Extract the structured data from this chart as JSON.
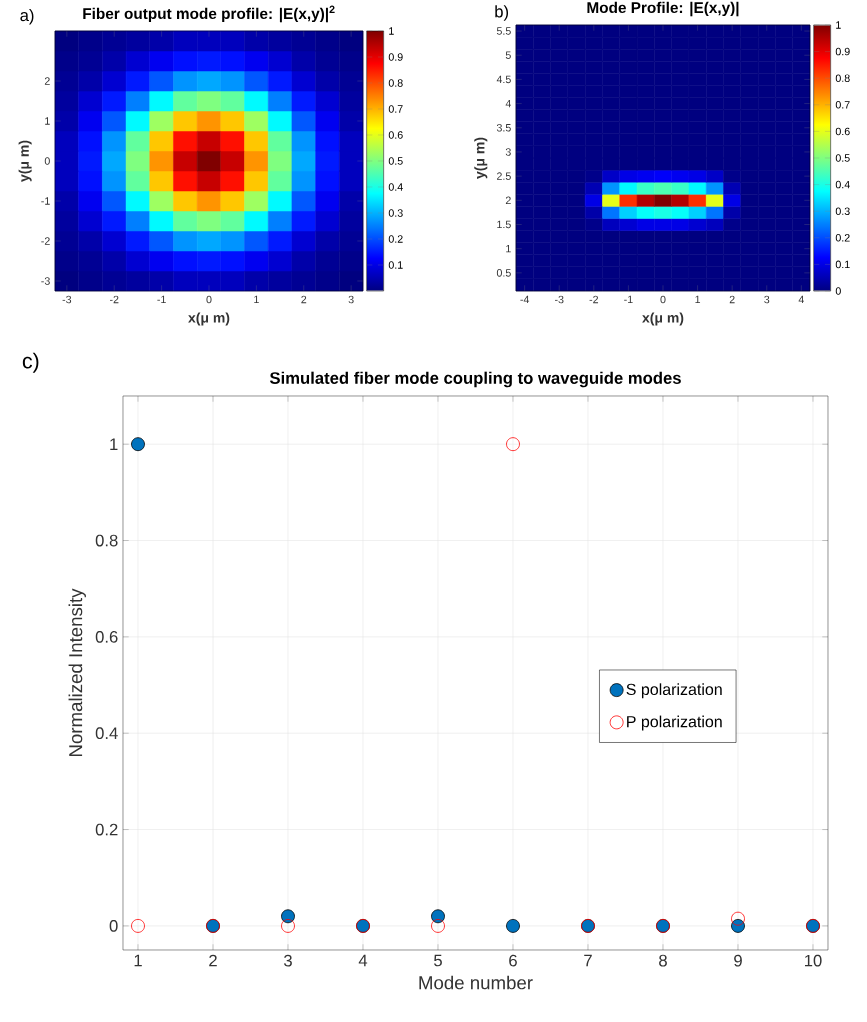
{
  "chart_data": [
    {
      "type": "heatmap",
      "title": "Fiber output mode profile: |E(x,y)|$^{2}$",
      "xlabel": "x(μ m)",
      "ylabel": "y(μ m)",
      "annotations": [
        "a)"
      ],
      "categories": [
        "-3",
        null,
        "-2",
        null,
        "-1",
        null,
        "0",
        null,
        "1",
        null,
        "2",
        null,
        "3"
      ],
      "y_categories": [
        null,
        null,
        "2",
        null,
        "1",
        null,
        "0",
        null,
        "-1",
        null,
        "-2",
        null,
        "-3"
      ],
      "cells": [
        [
          0,
          0.01,
          0.02,
          0.03,
          0.04,
          0.06,
          0.06,
          0.06,
          0.04,
          0.03,
          0.02,
          0.01,
          0
        ],
        [
          0.01,
          0.02,
          0.04,
          0.08,
          0.11,
          0.14,
          0.15,
          0.14,
          0.11,
          0.08,
          0.04,
          0.02,
          0.01
        ],
        [
          0.02,
          0.04,
          0.08,
          0.15,
          0.21,
          0.27,
          0.29,
          0.27,
          0.21,
          0.15,
          0.08,
          0.04,
          0.02
        ],
        [
          0.03,
          0.08,
          0.15,
          0.25,
          0.37,
          0.47,
          0.5,
          0.47,
          0.37,
          0.25,
          0.15,
          0.08,
          0.03
        ],
        [
          0.04,
          0.11,
          0.21,
          0.37,
          0.53,
          0.68,
          0.73,
          0.68,
          0.53,
          0.37,
          0.21,
          0.11,
          0.04
        ],
        [
          0.06,
          0.14,
          0.27,
          0.47,
          0.68,
          0.86,
          0.93,
          0.86,
          0.68,
          0.47,
          0.27,
          0.14,
          0.06
        ],
        [
          0.06,
          0.15,
          0.29,
          0.5,
          0.73,
          0.93,
          1,
          0.93,
          0.73,
          0.5,
          0.29,
          0.15,
          0.06
        ],
        [
          0.06,
          0.14,
          0.27,
          0.47,
          0.68,
          0.86,
          0.93,
          0.86,
          0.68,
          0.47,
          0.27,
          0.14,
          0.06
        ],
        [
          0.04,
          0.11,
          0.21,
          0.37,
          0.53,
          0.68,
          0.73,
          0.68,
          0.53,
          0.37,
          0.21,
          0.11,
          0.04
        ],
        [
          0.03,
          0.08,
          0.15,
          0.25,
          0.37,
          0.47,
          0.5,
          0.47,
          0.37,
          0.25,
          0.15,
          0.08,
          0.03
        ],
        [
          0.02,
          0.04,
          0.08,
          0.15,
          0.21,
          0.27,
          0.29,
          0.27,
          0.21,
          0.15,
          0.08,
          0.04,
          0.02
        ],
        [
          0.01,
          0.02,
          0.04,
          0.08,
          0.11,
          0.14,
          0.15,
          0.14,
          0.11,
          0.08,
          0.04,
          0.02,
          0.01
        ],
        [
          0,
          0.01,
          0.02,
          0.03,
          0.04,
          0.06,
          0.06,
          0.06,
          0.04,
          0.03,
          0.02,
          0.01,
          0
        ]
      ],
      "clim": [
        0,
        1
      ],
      "cticks": [
        0.1,
        0.2,
        0.3,
        0.4,
        0.5,
        0.6,
        0.7,
        0.8,
        0.9,
        1
      ]
    },
    {
      "type": "heatmap",
      "title": "Mode Profile: |E(x,y)|",
      "xlabel": "x(μ m)",
      "ylabel": "y(μ m)",
      "annotations": [
        "b)"
      ],
      "categories": [
        "-4",
        null,
        "-3",
        null,
        "-2",
        null,
        "-1",
        null,
        "0",
        null,
        "1",
        null,
        "2",
        null,
        "3",
        null,
        "4"
      ],
      "y_categories": [
        "5.5",
        null,
        "5",
        null,
        "4.5",
        null,
        "4",
        null,
        "3.5",
        null,
        "3",
        null,
        "2.5",
        null,
        "2",
        null,
        "1.5",
        null,
        "1",
        null,
        "0.5",
        null
      ],
      "cells": [
        [
          0,
          0,
          0,
          0,
          0,
          0,
          0,
          0,
          0,
          0,
          0,
          0,
          0,
          0,
          0,
          0,
          0
        ],
        [
          0,
          0,
          0,
          0,
          0,
          0,
          0,
          0,
          0,
          0,
          0,
          0,
          0,
          0,
          0,
          0,
          0
        ],
        [
          0,
          0,
          0,
          0,
          0,
          0,
          0,
          0,
          0,
          0,
          0,
          0,
          0,
          0,
          0,
          0,
          0
        ],
        [
          0,
          0,
          0,
          0,
          0,
          0,
          0,
          0,
          0,
          0,
          0,
          0,
          0,
          0,
          0,
          0,
          0
        ],
        [
          0,
          0,
          0,
          0,
          0,
          0,
          0,
          0,
          0,
          0,
          0,
          0,
          0,
          0,
          0,
          0,
          0
        ],
        [
          0,
          0,
          0,
          0,
          0,
          0,
          0,
          0,
          0,
          0,
          0,
          0,
          0,
          0,
          0,
          0,
          0
        ],
        [
          0,
          0,
          0,
          0,
          0,
          0,
          0,
          0,
          0,
          0,
          0,
          0,
          0,
          0,
          0,
          0,
          0
        ],
        [
          0,
          0,
          0,
          0,
          0,
          0,
          0,
          0,
          0,
          0,
          0,
          0,
          0,
          0,
          0,
          0,
          0
        ],
        [
          0,
          0,
          0,
          0,
          0,
          0,
          0,
          0,
          0,
          0,
          0,
          0,
          0,
          0,
          0,
          0,
          0
        ],
        [
          0,
          0,
          0,
          0,
          0,
          0,
          0,
          0,
          0,
          0,
          0,
          0,
          0,
          0,
          0,
          0,
          0
        ],
        [
          0,
          0,
          0,
          0,
          0,
          0,
          0,
          0,
          0,
          0,
          0,
          0,
          0,
          0,
          0,
          0,
          0
        ],
        [
          0,
          0,
          0,
          0,
          0,
          0,
          0,
          0,
          0,
          0,
          0,
          0,
          0,
          0,
          0,
          0,
          0
        ],
        [
          0,
          0,
          0,
          0,
          0.01,
          0.07,
          0.1,
          0.11,
          0.12,
          0.11,
          0.1,
          0.07,
          0.01,
          0,
          0,
          0,
          0
        ],
        [
          0,
          0,
          0,
          0,
          0.05,
          0.27,
          0.37,
          0.43,
          0.45,
          0.43,
          0.37,
          0.27,
          0.05,
          0,
          0,
          0,
          0
        ],
        [
          0,
          0,
          0,
          0,
          0.1,
          0.6,
          0.83,
          0.95,
          1,
          0.95,
          0.83,
          0.6,
          0.1,
          0,
          0,
          0,
          0
        ],
        [
          0,
          0,
          0,
          0,
          0.04,
          0.24,
          0.33,
          0.38,
          0.4,
          0.38,
          0.33,
          0.24,
          0.04,
          0,
          0,
          0,
          0
        ],
        [
          0,
          0,
          0,
          0,
          0.01,
          0.06,
          0.08,
          0.1,
          0.1,
          0.1,
          0.08,
          0.06,
          0.01,
          0,
          0,
          0,
          0
        ],
        [
          0,
          0,
          0,
          0,
          0,
          0,
          0,
          0,
          0,
          0,
          0,
          0,
          0,
          0,
          0,
          0,
          0
        ],
        [
          0,
          0,
          0,
          0,
          0,
          0,
          0,
          0,
          0,
          0,
          0,
          0,
          0,
          0,
          0,
          0,
          0
        ],
        [
          0,
          0,
          0,
          0,
          0,
          0,
          0,
          0,
          0,
          0,
          0,
          0,
          0,
          0,
          0,
          0,
          0
        ],
        [
          0,
          0,
          0,
          0,
          0,
          0,
          0,
          0,
          0,
          0,
          0,
          0,
          0,
          0,
          0,
          0,
          0
        ],
        [
          0,
          0,
          0,
          0,
          0,
          0,
          0,
          0,
          0,
          0,
          0,
          0,
          0,
          0,
          0,
          0,
          0
        ]
      ],
      "clim": [
        0,
        1
      ],
      "cticks": [
        0,
        0.1,
        0.2,
        0.3,
        0.4,
        0.5,
        0.6,
        0.7,
        0.8,
        0.9,
        1
      ]
    },
    {
      "type": "scatter",
      "title": "Simulated fiber mode coupling to waveguide modes",
      "xlabel": "Mode number",
      "ylabel": "Normalized Intensity",
      "annotations": [
        "c)"
      ],
      "x": [
        1,
        2,
        3,
        4,
        5,
        6,
        7,
        8,
        9,
        10
      ],
      "series": [
        {
          "name": "S polarization",
          "color": "#0072bd",
          "values": [
            1,
            0,
            0.02,
            0,
            0.02,
            0,
            0,
            0,
            0,
            0
          ]
        },
        {
          "name": "P polarization",
          "color": "#ff0000",
          "values": [
            0,
            0,
            0,
            0,
            0,
            1,
            0,
            0,
            0.015,
            0
          ]
        }
      ],
      "xlim": [
        0.8,
        10.2
      ],
      "xticks": [
        1,
        2,
        3,
        4,
        5,
        6,
        7,
        8,
        9,
        10
      ],
      "ylim": [
        -0.05,
        1.1
      ],
      "yticks": [
        0,
        0.2,
        0.4,
        0.6,
        0.8,
        1
      ],
      "grid": true,
      "legend": "right",
      "marker": "circle"
    }
  ]
}
